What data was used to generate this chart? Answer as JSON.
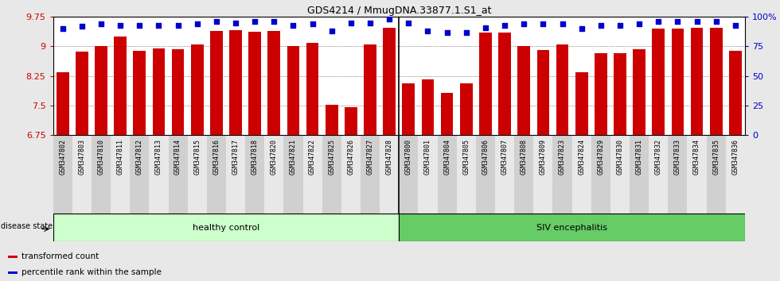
{
  "title": "GDS4214 / MmugDNA.33877.1.S1_at",
  "categories": [
    "GSM347802",
    "GSM347803",
    "GSM347810",
    "GSM347811",
    "GSM347812",
    "GSM347813",
    "GSM347814",
    "GSM347815",
    "GSM347816",
    "GSM347817",
    "GSM347818",
    "GSM347820",
    "GSM347821",
    "GSM347822",
    "GSM347825",
    "GSM347826",
    "GSM347827",
    "GSM347828",
    "GSM347800",
    "GSM347801",
    "GSM347804",
    "GSM347805",
    "GSM347806",
    "GSM347807",
    "GSM347808",
    "GSM347809",
    "GSM347823",
    "GSM347824",
    "GSM347829",
    "GSM347830",
    "GSM347831",
    "GSM347832",
    "GSM347833",
    "GSM347834",
    "GSM347835",
    "GSM347836"
  ],
  "bar_values": [
    8.35,
    8.87,
    9.01,
    9.25,
    8.88,
    8.95,
    8.93,
    9.05,
    9.39,
    9.42,
    9.38,
    9.4,
    9.01,
    9.08,
    7.52,
    7.45,
    9.05,
    9.48,
    8.05,
    8.17,
    7.82,
    8.07,
    9.35,
    9.35,
    9.01,
    8.9,
    9.05,
    8.35,
    8.83,
    8.83,
    8.92,
    9.45,
    9.46,
    9.47,
    9.47,
    8.88
  ],
  "percentile_values": [
    90,
    92,
    94,
    93,
    93,
    93,
    93,
    94,
    96,
    95,
    96,
    96,
    93,
    94,
    88,
    95,
    95,
    98,
    95,
    88,
    87,
    87,
    91,
    93,
    94,
    94,
    94,
    90,
    93,
    93,
    94,
    96,
    96,
    96,
    96,
    93
  ],
  "bar_color": "#CC0000",
  "percentile_color": "#0000CC",
  "ylim_left": [
    6.75,
    9.75
  ],
  "ylim_right": [
    0,
    100
  ],
  "yticks_left": [
    6.75,
    7.5,
    8.25,
    9.0,
    9.75
  ],
  "yticks_right": [
    0,
    25,
    50,
    75,
    100
  ],
  "ytick_labels_left": [
    "6.75",
    "7.5",
    "8.25",
    "9",
    "9.75"
  ],
  "ytick_labels_right": [
    "0",
    "25",
    "50",
    "75",
    "100%"
  ],
  "n_healthy": 18,
  "n_siv": 18,
  "group1_label": "healthy control",
  "group2_label": "SIV encephalitis",
  "group1_color": "#CCFFCC",
  "group2_color": "#66CC66",
  "disease_state_label": "disease state",
  "legend1_label": "transformed count",
  "legend2_label": "percentile rank within the sample",
  "bg_color": "#E8E8E8",
  "plot_bg_color": "#FFFFFF",
  "bar_width": 0.65
}
